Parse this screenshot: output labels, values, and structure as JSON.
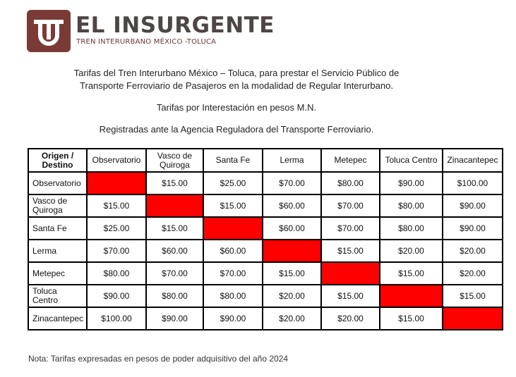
{
  "header": {
    "brand": "EL INSURGENTE",
    "tagline": "TREN INTERURBANO MÉXICO -TOLUCA"
  },
  "intro": {
    "lines": [
      "Tarifas del Tren Interurbano México – Toluca, para prestar el Servicio Público de",
      "Transporte Ferroviario de Pasajeros en la modalidad de Regular Interurbano.",
      "Tarifas por Interestación en pesos M.N.",
      "Registradas ante la Agencia Reguladora del Transporte Ferroviario."
    ]
  },
  "table": {
    "corner": "Origen / Destino",
    "columns": [
      "Observatorio",
      "Vasco de Quiroga",
      "Santa Fe",
      "Lerma",
      "Metepec",
      "Toluca Centro",
      "Zinacantepec"
    ],
    "rows": [
      {
        "label": "Observatorio",
        "cells": [
          null,
          "$15.00",
          "$25.00",
          "$70.00",
          "$80.00",
          "$90.00",
          "$100.00"
        ]
      },
      {
        "label": "Vasco de Quiroga",
        "cells": [
          "$15.00",
          null,
          "$15.00",
          "$60.00",
          "$70.00",
          "$80.00",
          "$90.00"
        ]
      },
      {
        "label": "Santa Fe",
        "cells": [
          "$25.00",
          "$15.00",
          null,
          "$60.00",
          "$70.00",
          "$80.00",
          "$90.00"
        ]
      },
      {
        "label": "Lerma",
        "cells": [
          "$70.00",
          "$60.00",
          "$60.00",
          null,
          "$15.00",
          "$20.00",
          "$20.00"
        ]
      },
      {
        "label": "Metepec",
        "cells": [
          "$80.00",
          "$70.00",
          "$70.00",
          "$15.00",
          null,
          "$15.00",
          "$20.00"
        ]
      },
      {
        "label": "Toluca Centro",
        "cells": [
          "$90.00",
          "$80.00",
          "$80.00",
          "$20.00",
          "$15.00",
          null,
          "$15.00"
        ]
      },
      {
        "label": "Zinacantepec",
        "cells": [
          "$100.00",
          "$90.00",
          "$90.00",
          "$20.00",
          "$20.00",
          "$15.00",
          null
        ]
      }
    ]
  },
  "note": "Nota: Tarifas expresadas en pesos de poder adquisitivo del año 2024"
}
